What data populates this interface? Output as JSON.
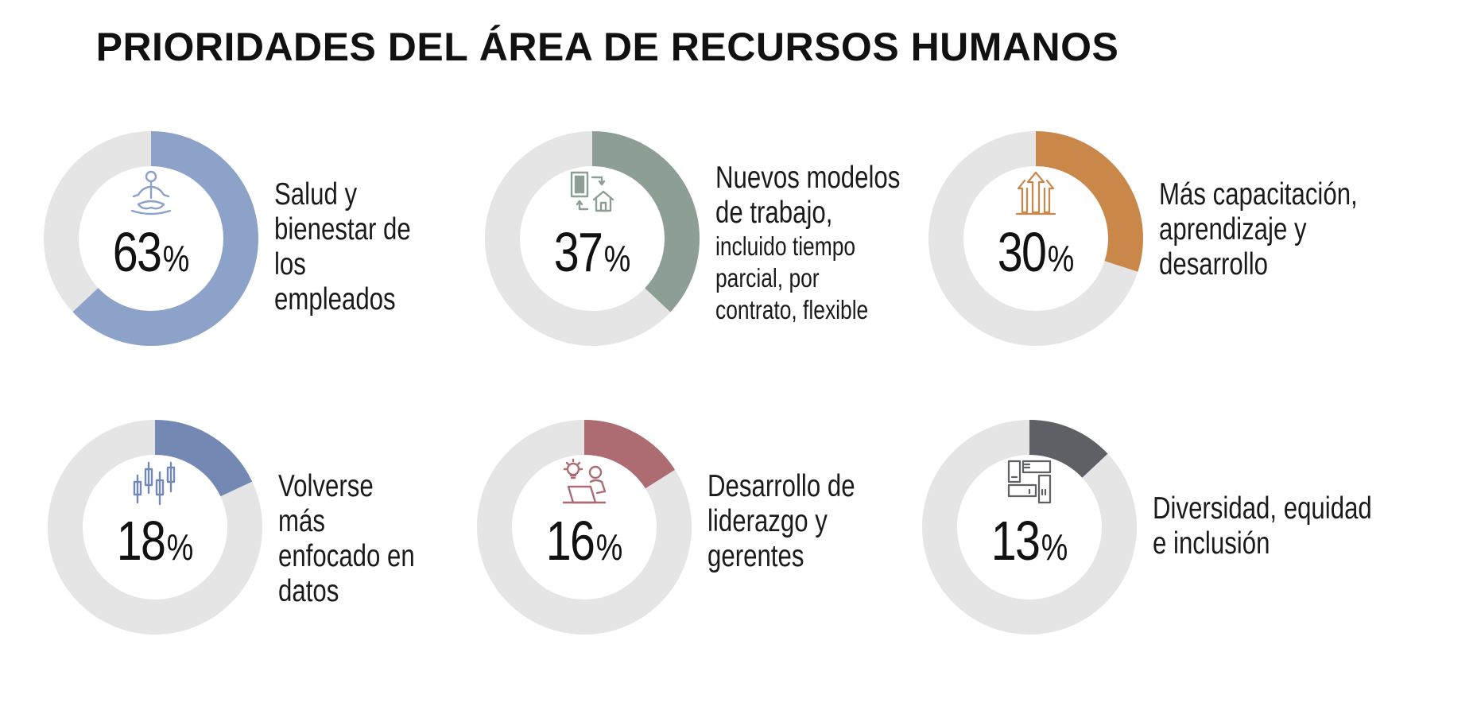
{
  "title": "PRIORIDADES DEL ÁREA DE RECURSOS HUMANOS",
  "track_color": "#e5e5e5",
  "chart_data": {
    "type": "donut",
    "title": "PRIORIDADES DEL ÁREA DE RECURSOS HUMANOS",
    "unit": "%",
    "items": [
      {
        "value": 63,
        "color": "#8da2c9",
        "icon": "meditation-icon",
        "label_lines": [
          "Salud y",
          "bienestar de",
          "los",
          "empleados"
        ],
        "small_from": 99
      },
      {
        "value": 37,
        "color": "#8d9f94",
        "icon": "office-home-icon",
        "label_lines": [
          "Nuevos modelos",
          "de trabajo,",
          "incluido tiempo",
          "parcial, por",
          "contrato, flexible"
        ],
        "small_from": 2
      },
      {
        "value": 30,
        "color": "#c9874a",
        "icon": "growth-arrows-icon",
        "label_lines": [
          "Más capacitación,",
          "aprendizaje y",
          "desarrollo"
        ],
        "small_from": 99
      },
      {
        "value": 18,
        "color": "#7389b3",
        "icon": "candlestick-chart-icon",
        "label_lines": [
          "Volverse",
          "más",
          "enfocado en",
          "datos"
        ],
        "small_from": 99
      },
      {
        "value": 16,
        "color": "#ad6b72",
        "icon": "leader-idea-icon",
        "label_lines": [
          "Desarrollo de",
          "liderazgo y",
          "gerentes"
        ],
        "small_from": 99
      },
      {
        "value": 13,
        "color": "#5f6066",
        "icon": "joined-hands-icon",
        "label_lines": [
          "Diversidad, equidad",
          "e inclusión"
        ],
        "small_from": 99
      }
    ]
  }
}
